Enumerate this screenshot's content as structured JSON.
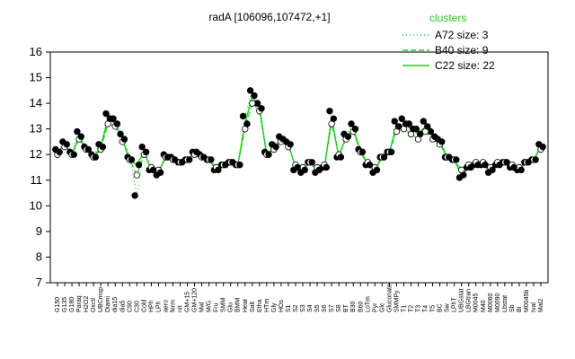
{
  "chart_data": {
    "type": "line",
    "title": "radA [106096,107472,+1]",
    "xlabel": "",
    "ylabel": "",
    "ylim": [
      7,
      16
    ],
    "yticks": [
      7,
      8,
      9,
      10,
      11,
      12,
      13,
      14,
      15,
      16
    ],
    "grid": false,
    "legend": {
      "title": "clusters",
      "placement": "top-right",
      "entries": [
        {
          "label": "A72 size: 3",
          "style": "dotted"
        },
        {
          "label": "B40 size: 9",
          "style": "dashed"
        },
        {
          "label": "C22 size: 22",
          "style": "solid"
        }
      ]
    },
    "series_color": "#22cc22",
    "tick_labels": [
      "G150",
      "G135",
      "G180",
      "Paraq",
      "H2O2",
      "Oxctl",
      "UBCmsp",
      "Diami",
      "dia15",
      "dia5",
      "C90",
      "C30",
      "Cold",
      "HPh",
      "LPh",
      "aero",
      "ferm",
      "nit",
      "GM+15",
      "GM+120",
      "Mal",
      "M/G",
      "Fru",
      "SMM",
      "Glu",
      "BMM",
      "Heat",
      "Salt",
      "Etha",
      "HTm",
      "Gly",
      "HOs",
      "S1",
      "S2",
      "S3",
      "S4",
      "S5",
      "S6",
      "S7",
      "S8",
      "BT",
      "B30",
      "B60",
      "LoTm",
      "Pyr",
      "Glc",
      "Gluconate",
      "SMMPy",
      "T1",
      "T2",
      "T3",
      "T4",
      "T5",
      "BC",
      "Sw",
      "LPhT",
      "UBGstat",
      "LBGtran",
      "M0045",
      "M40",
      "M0060",
      "M0090",
      "Lbstat",
      "Sb",
      "BI",
      "M0045b",
      "Ival",
      "Mal2"
    ],
    "x": [
      1,
      2,
      3,
      4,
      5,
      6,
      7,
      8,
      9,
      10,
      11,
      12,
      13,
      14,
      15,
      16,
      17,
      18,
      19,
      20,
      21,
      22,
      23,
      24,
      25,
      26,
      27,
      28,
      29,
      30,
      31,
      32,
      33,
      34,
      35,
      36,
      37,
      38,
      39,
      40,
      41,
      42,
      43,
      44,
      45,
      46,
      47,
      48,
      49,
      50,
      51,
      52,
      53,
      54,
      55,
      56,
      57,
      58,
      59,
      60,
      61,
      62,
      63,
      64,
      65,
      66,
      67,
      68
    ],
    "series": [
      {
        "values": [
          12.2,
          12.5,
          12.1,
          12.9,
          12.3,
          12.0,
          12.4,
          13.6,
          13.4,
          12.8,
          11.9,
          10.4,
          12.3,
          11.4,
          11.2,
          12.0,
          11.9,
          11.7,
          11.8,
          12.1,
          12.0,
          11.8,
          11.4,
          11.6,
          11.7,
          11.6,
          13.5,
          14.5,
          14.0,
          12.1,
          12.4,
          12.7,
          12.5,
          11.4,
          11.3,
          11.7,
          11.3,
          11.5,
          13.7,
          11.9,
          12.8,
          13.2,
          12.2,
          11.6,
          11.3,
          11.9,
          12.1,
          13.3,
          13.4,
          13.2,
          13.0,
          13.3,
          12.9,
          12.6,
          11.9,
          11.8,
          11.1,
          11.5,
          11.6,
          11.6,
          11.3,
          11.6,
          11.7,
          11.5,
          11.4,
          11.7,
          11.8,
          12.4
        ]
      },
      {
        "values": [
          12.0,
          12.3,
          12.0,
          12.6,
          12.2,
          11.9,
          12.2,
          13.2,
          13.1,
          12.5,
          11.8,
          11.2,
          12.0,
          11.5,
          11.4,
          11.9,
          11.8,
          11.7,
          11.8,
          12.0,
          11.9,
          11.8,
          11.5,
          11.6,
          11.7,
          11.6,
          13.0,
          14.0,
          13.7,
          12.0,
          12.2,
          12.5,
          12.3,
          11.6,
          11.5,
          11.7,
          11.5,
          11.6,
          13.2,
          12.0,
          12.6,
          12.9,
          12.1,
          11.7,
          11.5,
          11.9,
          12.1,
          12.9,
          13.0,
          12.8,
          12.6,
          12.9,
          12.6,
          12.4,
          11.9,
          11.8,
          11.4,
          11.6,
          11.7,
          11.7,
          11.5,
          11.7,
          11.7,
          11.6,
          11.5,
          11.7,
          11.8,
          12.2
        ]
      },
      {
        "values": [
          12.1,
          12.4,
          12.0,
          12.7,
          12.2,
          11.9,
          12.3,
          13.4,
          13.2,
          12.6,
          11.8,
          11.6,
          12.1,
          11.4,
          11.3,
          11.9,
          11.8,
          11.7,
          11.8,
          12.1,
          11.9,
          11.8,
          11.4,
          11.6,
          11.7,
          11.6,
          13.2,
          14.3,
          13.8,
          12.0,
          12.3,
          12.6,
          12.4,
          11.5,
          11.4,
          11.7,
          11.4,
          11.5,
          13.4,
          11.9,
          12.7,
          13.0,
          12.1,
          11.6,
          11.4,
          11.9,
          12.1,
          13.1,
          13.2,
          13.0,
          12.8,
          13.1,
          12.7,
          12.5,
          11.9,
          11.8,
          11.2,
          11.5,
          11.6,
          11.6,
          11.4,
          11.6,
          11.7,
          11.5,
          11.4,
          11.7,
          11.8,
          12.3
        ]
      }
    ]
  }
}
